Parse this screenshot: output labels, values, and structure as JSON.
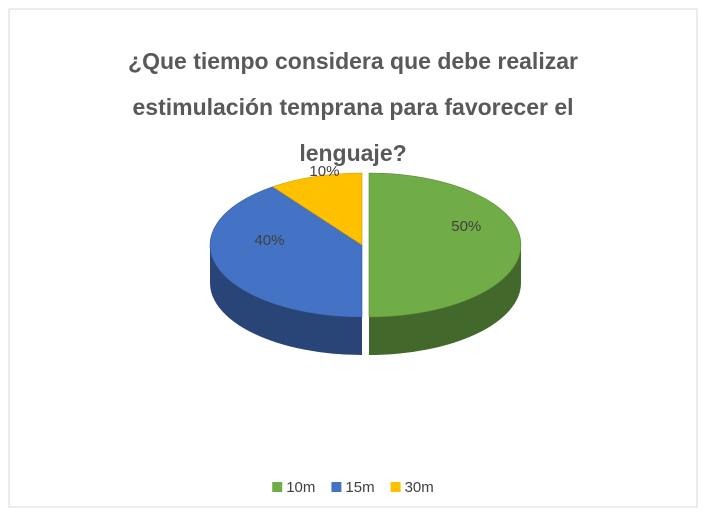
{
  "chart_data": {
    "type": "pie",
    "title": "¿Que tiempo considera que debe realizar estimulación temprana para favorecer el lenguaje?",
    "categories": [
      "10m",
      "15m",
      "30m"
    ],
    "values": [
      50,
      40,
      10
    ],
    "value_labels": [
      "50%",
      "40%",
      "10%"
    ],
    "colors": [
      "#70ad47",
      "#4472c4",
      "#ffc000"
    ],
    "legend": "bottom"
  }
}
